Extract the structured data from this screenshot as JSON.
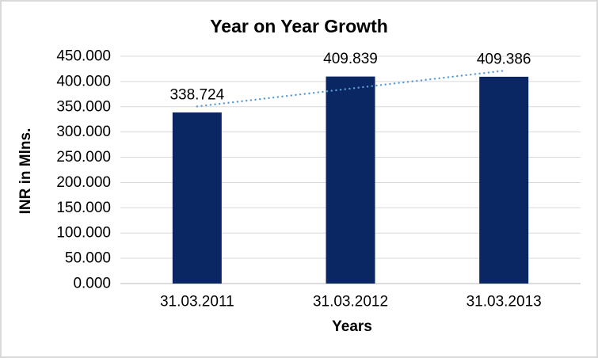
{
  "chart_data": {
    "type": "bar",
    "title": "Year on Year Growth",
    "xlabel": "Years",
    "ylabel": "INR in Mlns.",
    "categories": [
      "31.03.2011",
      "31.03.2012",
      "31.03.2013"
    ],
    "values": [
      338.724,
      409.839,
      409.386
    ],
    "data_labels": [
      "338.724",
      "409.839",
      "409.386"
    ],
    "ytick_labels": [
      "450.000",
      "400.000",
      "350.000",
      "300.000",
      "250.000",
      "200.000",
      "150.000",
      "100.000",
      "50.000",
      "0.000"
    ],
    "ylim": [
      0,
      450
    ],
    "ytick_step": 50,
    "grid": true,
    "legend": "none",
    "trendline": {
      "type": "linear",
      "style": "dotted",
      "color": "#5B9BD5",
      "endpoint_values": [
        350.652,
        421.314
      ]
    },
    "colors": {
      "bar": "#0A2663",
      "gridline": "#D9D9D9",
      "axis_line": "#D0D0D0",
      "text": "#000000",
      "border": "#D9D9D9"
    }
  }
}
